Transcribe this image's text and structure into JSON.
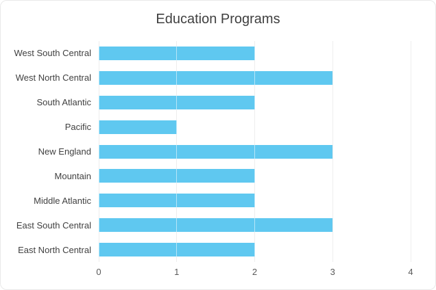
{
  "chart_data": {
    "type": "bar",
    "orientation": "horizontal",
    "title": "Education Programs",
    "categories": [
      "West South Central",
      "West North Central",
      "South Atlantic",
      "Pacific",
      "New England",
      "Mountain",
      "Middle Atlantic",
      "East South Central",
      "East North Central"
    ],
    "values": [
      2,
      3,
      2,
      1,
      3,
      2,
      2,
      3,
      2
    ],
    "xlabel": "",
    "ylabel": "",
    "xlim": [
      0,
      4
    ],
    "x_ticks": [
      0,
      1,
      2,
      3,
      4
    ],
    "grid": "vertical-only",
    "legend": "none",
    "colors": {
      "bar": "#5FC8F0",
      "gridline": "#D9D9D9",
      "title_text": "#3F3F3F",
      "category_text": "#404040",
      "tick_text": "#595959",
      "background": "#FFFFFF",
      "border": "#E9E9E9"
    }
  }
}
